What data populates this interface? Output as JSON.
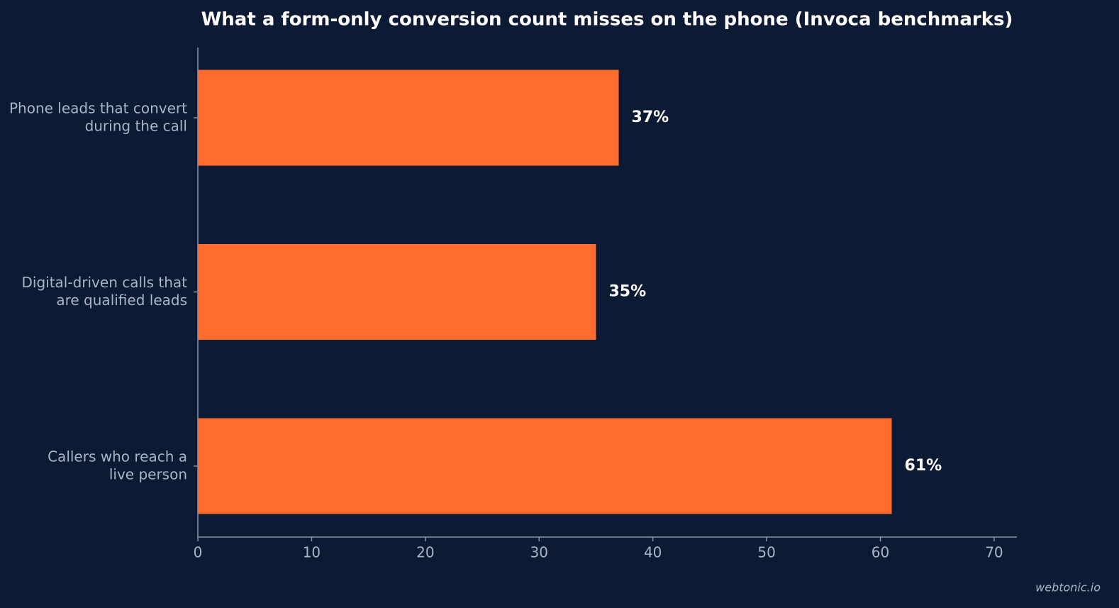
{
  "chart_data": {
    "type": "barh",
    "title": "What a form-only conversion count misses on the phone (Invoca benchmarks)",
    "categories": [
      [
        "Phone leads that convert",
        "during the call"
      ],
      [
        "Digital-driven calls that",
        "are qualified leads"
      ],
      [
        "Callers who reach a",
        "live person"
      ]
    ],
    "values": [
      37,
      35,
      61
    ],
    "value_labels": [
      "37%",
      "35%",
      "61%"
    ],
    "color": "#ff6b2c",
    "xlim": [
      0,
      72
    ],
    "xticks": [
      0,
      10,
      20,
      30,
      40,
      50,
      60,
      70
    ],
    "grid": false,
    "watermark": "webtonic.io"
  }
}
